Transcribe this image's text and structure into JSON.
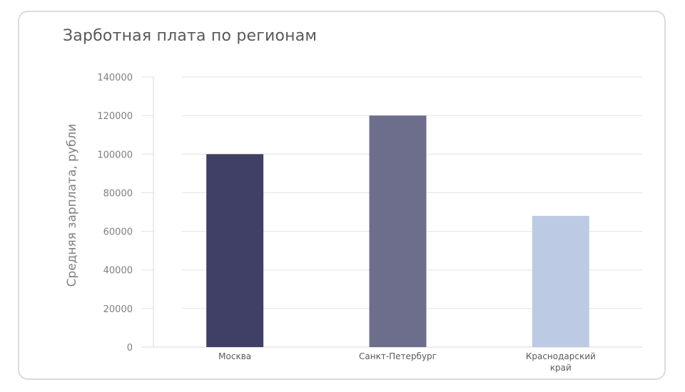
{
  "chart_data": {
    "type": "bar",
    "title": "Зарботная плата по регионам",
    "xlabel": "",
    "ylabel": "Средняя зарплата, рубли",
    "categories": [
      [
        "Москва"
      ],
      [
        "Санкт-Петербург"
      ],
      [
        "Краснодарский",
        "край"
      ]
    ],
    "values": [
      100000,
      120000,
      68000
    ],
    "bar_colors": [
      "#404066",
      "#6d6e8c",
      "#bccbe3"
    ],
    "ylim": [
      0,
      140000
    ],
    "yticks": [
      0,
      20000,
      40000,
      60000,
      80000,
      100000,
      120000,
      140000
    ],
    "ytick_labels": [
      "0",
      "20000",
      "40000",
      "60000",
      "80000",
      "100000",
      "120000",
      "140000"
    ],
    "grid": true,
    "legend": "none"
  }
}
